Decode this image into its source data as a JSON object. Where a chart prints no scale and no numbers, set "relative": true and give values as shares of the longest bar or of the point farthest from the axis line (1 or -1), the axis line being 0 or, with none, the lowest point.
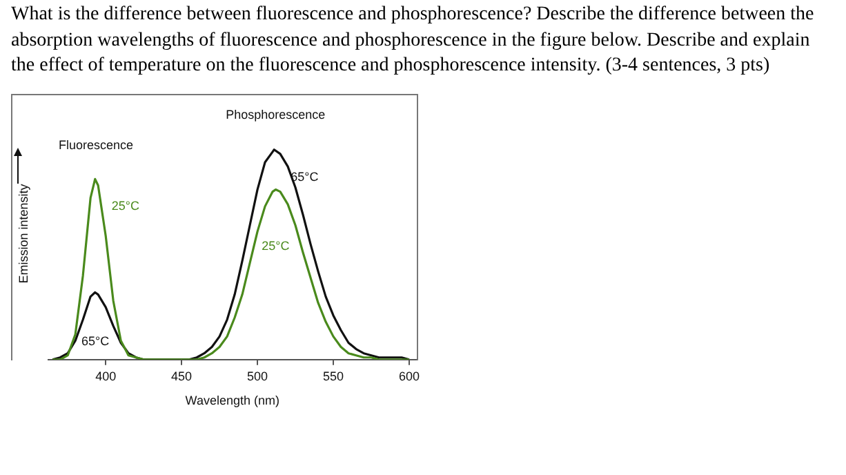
{
  "chart_data": {
    "type": "line",
    "title": "What is the difference between fluorescence and phosphorescence? Describe the difference between the absorption wavelengths of fluorescence and phosphorescence in the figure below. Describe and explain the effect of temperature on the fluorescence and phosphorescence intensity. (3-4 sentences, 3 pts)",
    "xlabel": "Wavelength (nm)",
    "ylabel": "Emission intensity",
    "relative": true,
    "xlim": [
      362,
      605
    ],
    "xticks": [
      400,
      450,
      500,
      550,
      600
    ],
    "grid": false,
    "legend": false,
    "marker": "none",
    "line_style": "solid",
    "series": [
      {
        "name": "25°C",
        "color": "#4a8a1c",
        "x": [
          365,
          370,
          375,
          380,
          385,
          390,
          393,
          395,
          400,
          405,
          410,
          415,
          420,
          425,
          430,
          435,
          440,
          445,
          450,
          455,
          460,
          465,
          470,
          475,
          480,
          485,
          490,
          495,
          500,
          505,
          510,
          512,
          515,
          520,
          525,
          530,
          535,
          540,
          545,
          550,
          555,
          560,
          565,
          570,
          575,
          580,
          585,
          590,
          595,
          600
        ],
        "values": [
          0,
          0,
          0.02,
          0.12,
          0.4,
          0.77,
          0.86,
          0.83,
          0.59,
          0.28,
          0.09,
          0.02,
          0.01,
          0,
          0,
          0,
          0,
          0,
          0,
          0,
          0,
          0.01,
          0.03,
          0.06,
          0.11,
          0.2,
          0.31,
          0.46,
          0.61,
          0.73,
          0.8,
          0.81,
          0.8,
          0.74,
          0.64,
          0.51,
          0.39,
          0.27,
          0.18,
          0.11,
          0.06,
          0.03,
          0.02,
          0.01,
          0.01,
          0,
          0,
          0,
          0,
          0
        ]
      },
      {
        "name": "65°C",
        "color": "#111111",
        "x": [
          365,
          370,
          375,
          380,
          385,
          390,
          393,
          395,
          400,
          405,
          410,
          415,
          420,
          425,
          430,
          435,
          440,
          445,
          450,
          455,
          460,
          465,
          470,
          475,
          480,
          485,
          490,
          495,
          500,
          505,
          510,
          511,
          515,
          520,
          525,
          530,
          535,
          540,
          545,
          550,
          555,
          560,
          565,
          570,
          575,
          580,
          585,
          590,
          595,
          600
        ],
        "values": [
          0,
          0.01,
          0.03,
          0.09,
          0.19,
          0.3,
          0.32,
          0.31,
          0.25,
          0.16,
          0.08,
          0.03,
          0.01,
          0,
          0,
          0,
          0,
          0,
          0,
          0,
          0.01,
          0.03,
          0.06,
          0.11,
          0.19,
          0.31,
          0.47,
          0.64,
          0.81,
          0.94,
          0.99,
          1,
          0.98,
          0.92,
          0.82,
          0.69,
          0.55,
          0.42,
          0.3,
          0.21,
          0.14,
          0.08,
          0.05,
          0.03,
          0.02,
          0.01,
          0.01,
          0.01,
          0.01,
          0
        ]
      }
    ],
    "annotations": [
      "Fluorescence",
      "Phosphorescence",
      "25°C",
      "65°C"
    ]
  }
}
